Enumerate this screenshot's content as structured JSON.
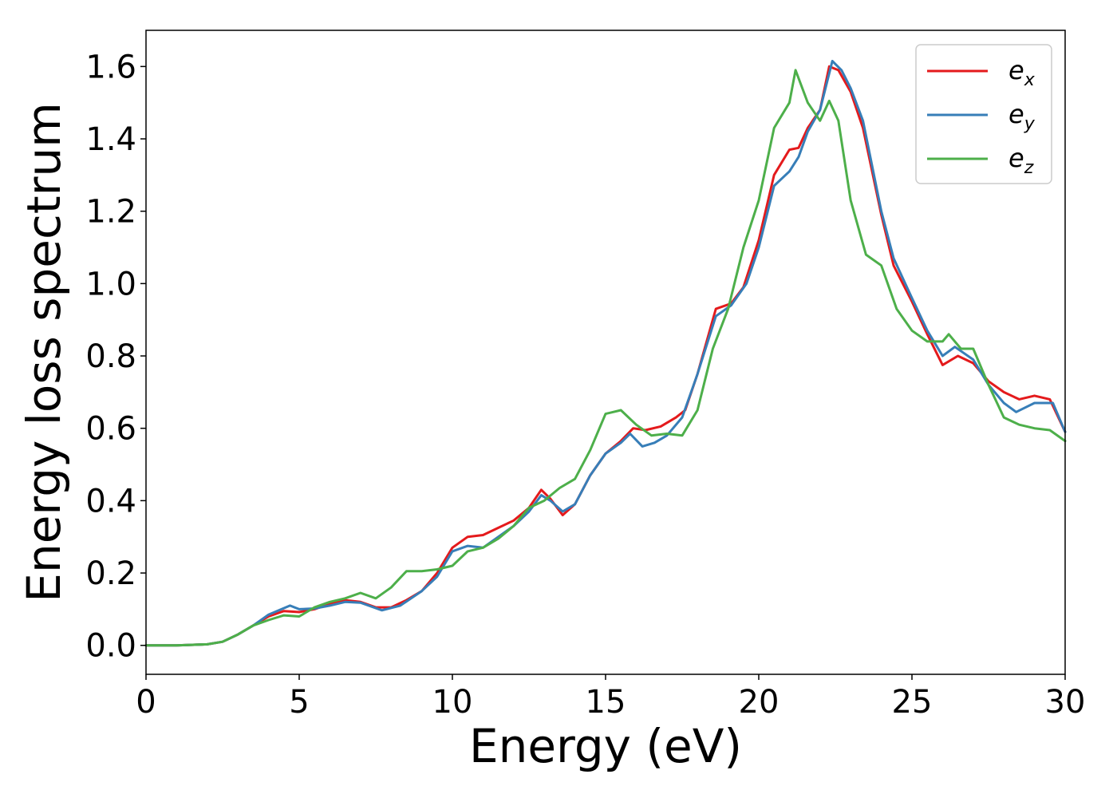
{
  "chart_data": {
    "type": "line",
    "title": "",
    "xlabel": "Energy (eV)",
    "ylabel": "Energy loss spectrum",
    "xlim": [
      0,
      30
    ],
    "ylim": [
      -0.08,
      1.7
    ],
    "xticks": [
      0,
      5,
      10,
      15,
      20,
      25,
      30
    ],
    "xtick_labels": [
      "0",
      "5",
      "10",
      "15",
      "20",
      "25",
      "30"
    ],
    "yticks": [
      0.0,
      0.2,
      0.4,
      0.6,
      0.8,
      1.0,
      1.2,
      1.4,
      1.6
    ],
    "ytick_labels": [
      "0.0",
      "0.2",
      "0.4",
      "0.6",
      "0.8",
      "1.0",
      "1.2",
      "1.4",
      "1.6"
    ],
    "grid": false,
    "legend_position": "top-right",
    "series": [
      {
        "name": "e_x",
        "label_base": "e",
        "label_sub": "x",
        "color": "#e41a1c",
        "points": [
          [
            0,
            0.0
          ],
          [
            1,
            0.0
          ],
          [
            2,
            0.003
          ],
          [
            2.5,
            0.01
          ],
          [
            3,
            0.03
          ],
          [
            3.5,
            0.055
          ],
          [
            4,
            0.08
          ],
          [
            4.5,
            0.095
          ],
          [
            5,
            0.092
          ],
          [
            5.5,
            0.1
          ],
          [
            6,
            0.115
          ],
          [
            6.5,
            0.125
          ],
          [
            7,
            0.12
          ],
          [
            7.5,
            0.105
          ],
          [
            8,
            0.105
          ],
          [
            8.5,
            0.125
          ],
          [
            9,
            0.15
          ],
          [
            9.5,
            0.2
          ],
          [
            10,
            0.27
          ],
          [
            10.5,
            0.3
          ],
          [
            11,
            0.305
          ],
          [
            11.5,
            0.325
          ],
          [
            12,
            0.345
          ],
          [
            12.5,
            0.38
          ],
          [
            12.9,
            0.43
          ],
          [
            13.2,
            0.405
          ],
          [
            13.6,
            0.36
          ],
          [
            14,
            0.39
          ],
          [
            14.5,
            0.47
          ],
          [
            15,
            0.53
          ],
          [
            15.5,
            0.565
          ],
          [
            15.9,
            0.6
          ],
          [
            16.3,
            0.595
          ],
          [
            16.8,
            0.605
          ],
          [
            17.3,
            0.63
          ],
          [
            17.6,
            0.65
          ],
          [
            18,
            0.75
          ],
          [
            18.6,
            0.93
          ],
          [
            19.1,
            0.945
          ],
          [
            19.5,
            0.99
          ],
          [
            20,
            1.12
          ],
          [
            20.5,
            1.3
          ],
          [
            21,
            1.37
          ],
          [
            21.3,
            1.375
          ],
          [
            21.6,
            1.43
          ],
          [
            22,
            1.48
          ],
          [
            22.3,
            1.6
          ],
          [
            22.6,
            1.59
          ],
          [
            23,
            1.53
          ],
          [
            23.4,
            1.43
          ],
          [
            24,
            1.19
          ],
          [
            24.4,
            1.05
          ],
          [
            25,
            0.95
          ],
          [
            25.5,
            0.86
          ],
          [
            26,
            0.775
          ],
          [
            26.5,
            0.8
          ],
          [
            27,
            0.78
          ],
          [
            27.5,
            0.73
          ],
          [
            28,
            0.7
          ],
          [
            28.5,
            0.68
          ],
          [
            29,
            0.69
          ],
          [
            29.5,
            0.68
          ],
          [
            30,
            0.59
          ]
        ]
      },
      {
        "name": "e_y",
        "label_base": "e",
        "label_sub": "y",
        "color": "#377eb8",
        "points": [
          [
            0,
            0.0
          ],
          [
            1,
            0.0
          ],
          [
            2,
            0.003
          ],
          [
            2.5,
            0.01
          ],
          [
            3,
            0.03
          ],
          [
            3.5,
            0.055
          ],
          [
            4,
            0.085
          ],
          [
            4.7,
            0.11
          ],
          [
            5,
            0.1
          ],
          [
            5.5,
            0.102
          ],
          [
            6,
            0.11
          ],
          [
            6.5,
            0.12
          ],
          [
            7,
            0.118
          ],
          [
            7.7,
            0.097
          ],
          [
            8.3,
            0.11
          ],
          [
            9,
            0.15
          ],
          [
            9.5,
            0.19
          ],
          [
            10,
            0.26
          ],
          [
            10.5,
            0.275
          ],
          [
            11,
            0.27
          ],
          [
            11.5,
            0.3
          ],
          [
            12,
            0.33
          ],
          [
            12.5,
            0.37
          ],
          [
            12.9,
            0.415
          ],
          [
            13.2,
            0.4
          ],
          [
            13.6,
            0.37
          ],
          [
            14,
            0.39
          ],
          [
            14.5,
            0.47
          ],
          [
            15,
            0.53
          ],
          [
            15.5,
            0.56
          ],
          [
            15.8,
            0.585
          ],
          [
            16.2,
            0.55
          ],
          [
            16.6,
            0.56
          ],
          [
            17,
            0.58
          ],
          [
            17.5,
            0.63
          ],
          [
            18,
            0.75
          ],
          [
            18.6,
            0.91
          ],
          [
            19.1,
            0.94
          ],
          [
            19.6,
            1.0
          ],
          [
            20,
            1.1
          ],
          [
            20.5,
            1.27
          ],
          [
            21,
            1.31
          ],
          [
            21.3,
            1.35
          ],
          [
            21.6,
            1.42
          ],
          [
            22,
            1.48
          ],
          [
            22.4,
            1.615
          ],
          [
            22.7,
            1.59
          ],
          [
            23,
            1.54
          ],
          [
            23.4,
            1.45
          ],
          [
            24,
            1.2
          ],
          [
            24.4,
            1.07
          ],
          [
            25,
            0.96
          ],
          [
            25.5,
            0.87
          ],
          [
            26,
            0.8
          ],
          [
            26.4,
            0.825
          ],
          [
            27,
            0.79
          ],
          [
            27.5,
            0.72
          ],
          [
            28,
            0.67
          ],
          [
            28.4,
            0.645
          ],
          [
            29,
            0.67
          ],
          [
            29.6,
            0.67
          ],
          [
            30,
            0.59
          ]
        ]
      },
      {
        "name": "e_z",
        "label_base": "e",
        "label_sub": "z",
        "color": "#4daf4a",
        "points": [
          [
            0,
            0.0
          ],
          [
            1,
            0.0
          ],
          [
            2,
            0.003
          ],
          [
            2.5,
            0.01
          ],
          [
            3,
            0.03
          ],
          [
            3.5,
            0.055
          ],
          [
            4,
            0.07
          ],
          [
            4.5,
            0.083
          ],
          [
            5,
            0.08
          ],
          [
            5.5,
            0.105
          ],
          [
            6,
            0.12
          ],
          [
            6.5,
            0.13
          ],
          [
            7,
            0.145
          ],
          [
            7.5,
            0.13
          ],
          [
            8,
            0.16
          ],
          [
            8.5,
            0.205
          ],
          [
            9,
            0.205
          ],
          [
            9.5,
            0.21
          ],
          [
            10,
            0.22
          ],
          [
            10.5,
            0.26
          ],
          [
            11,
            0.27
          ],
          [
            11.5,
            0.295
          ],
          [
            12,
            0.33
          ],
          [
            12.5,
            0.38
          ],
          [
            13,
            0.4
          ],
          [
            13.5,
            0.435
          ],
          [
            14,
            0.46
          ],
          [
            14.5,
            0.54
          ],
          [
            15,
            0.64
          ],
          [
            15.5,
            0.65
          ],
          [
            16,
            0.61
          ],
          [
            16.5,
            0.58
          ],
          [
            17,
            0.585
          ],
          [
            17.5,
            0.58
          ],
          [
            18,
            0.65
          ],
          [
            18.5,
            0.82
          ],
          [
            19,
            0.93
          ],
          [
            19.5,
            1.1
          ],
          [
            20,
            1.23
          ],
          [
            20.5,
            1.43
          ],
          [
            21,
            1.5
          ],
          [
            21.2,
            1.59
          ],
          [
            21.6,
            1.5
          ],
          [
            22,
            1.45
          ],
          [
            22.3,
            1.505
          ],
          [
            22.6,
            1.45
          ],
          [
            23,
            1.23
          ],
          [
            23.5,
            1.08
          ],
          [
            24,
            1.05
          ],
          [
            24.5,
            0.93
          ],
          [
            25,
            0.87
          ],
          [
            25.5,
            0.84
          ],
          [
            26,
            0.84
          ],
          [
            26.2,
            0.86
          ],
          [
            26.6,
            0.82
          ],
          [
            27,
            0.82
          ],
          [
            27.5,
            0.72
          ],
          [
            28,
            0.63
          ],
          [
            28.5,
            0.61
          ],
          [
            29,
            0.6
          ],
          [
            29.5,
            0.595
          ],
          [
            30,
            0.565
          ]
        ]
      }
    ]
  }
}
